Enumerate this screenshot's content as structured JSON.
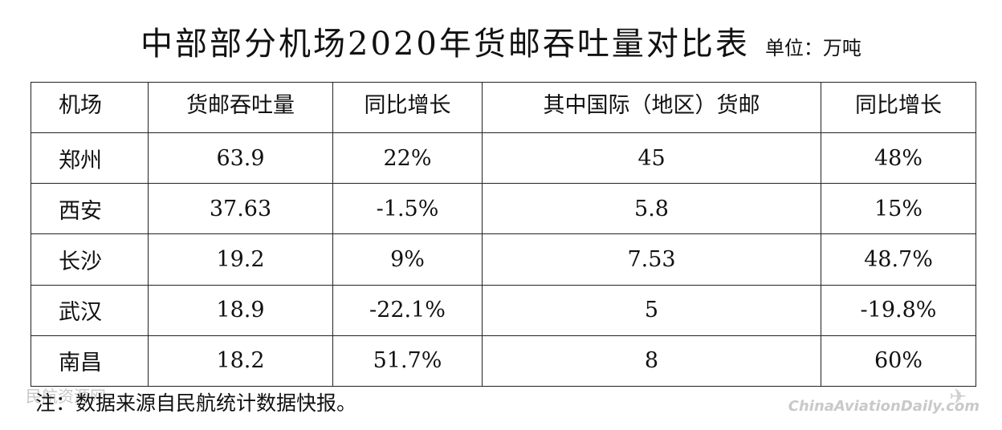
{
  "title": "中部部分机场2020年货邮吞吐量对比表",
  "unit": "单位：万吨",
  "table": {
    "headers": [
      "机场",
      "货邮吞吐量",
      "同比增长",
      "其中国际（地区）货邮",
      "同比增长"
    ],
    "rows": [
      [
        "郑州",
        "63.9",
        "22%",
        "45",
        "48%"
      ],
      [
        "西安",
        "37.63",
        "-1.5%",
        "5.8",
        "15%"
      ],
      [
        "长沙",
        "19.2",
        "9%",
        "7.53",
        "48.7%"
      ],
      [
        "武汉",
        "18.9",
        "-22.1%",
        "5",
        "-19.8%"
      ],
      [
        "南昌",
        "18.2",
        "51.7%",
        "8",
        "60%"
      ]
    ]
  },
  "note": "注：数据来源自民航统计数据快报。",
  "watermark_left": "民航资源网",
  "watermark_right": "ChinaAviationDaily.com",
  "watermark_icon": "plane-icon"
}
